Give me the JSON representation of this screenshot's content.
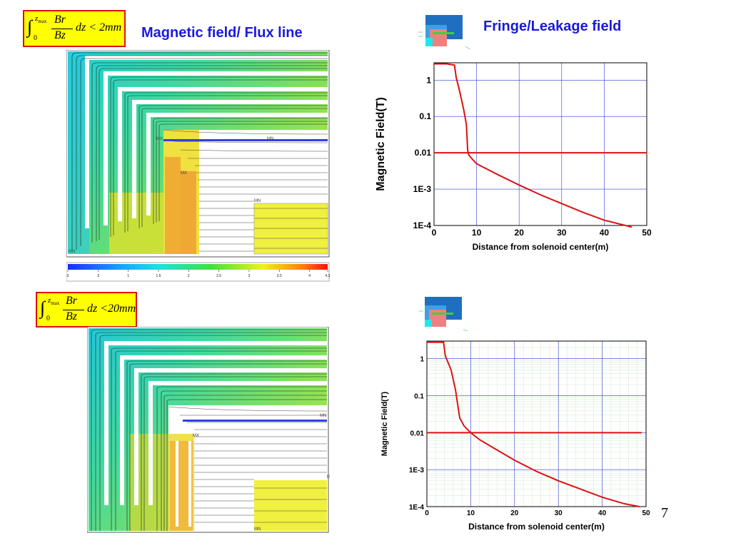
{
  "slide": {
    "title_left": "Magnetic field/ Flux line",
    "title_right": "Fringe/Leakage field",
    "page_number": "7"
  },
  "formulas": [
    {
      "lower": "0",
      "upper": "z",
      "upper_sub": "max",
      "num": "Br",
      "den": "Bz",
      "rhs": "dz < 2mm"
    },
    {
      "lower": "0",
      "upper": "z",
      "upper_sub": "max",
      "num": "Br",
      "den": "Bz",
      "rhs": "dz <20mm"
    }
  ],
  "field_maps": [
    {
      "marker_labels": [
        "MX",
        "MN",
        "MX",
        "MN",
        "MN"
      ],
      "colorbar": {
        "min": 0,
        "max": 4.3,
        "ticks": [
          "0",
          ".5",
          "1",
          "1.5",
          "2",
          "2.5",
          "3",
          "3.5",
          "4",
          "4.3"
        ]
      }
    },
    {
      "marker_labels": [
        "MN",
        "MX",
        "MX",
        "MN"
      ]
    }
  ],
  "chart_data": [
    {
      "type": "line",
      "title": "",
      "xlabel": "Distance from solenoid center(m)",
      "ylabel": "Magnetic Field(T)",
      "xlim": [
        0,
        50
      ],
      "ylim": [
        0.0001,
        3
      ],
      "yscale": "log",
      "xticks": [
        "0",
        "10",
        "20",
        "30",
        "40",
        "50"
      ],
      "yticks": [
        {
          "value": 1,
          "label": "1"
        },
        {
          "value": 0.1,
          "label": "0.1"
        },
        {
          "value": 0.01,
          "label": "0.01"
        },
        {
          "value": 0.001,
          "label": "1E-3"
        },
        {
          "value": 0.0001,
          "label": "1E-4"
        }
      ],
      "grid": "major",
      "series": [
        {
          "color": "#e01010",
          "x": [
            0,
            3,
            4.8,
            5.2,
            6,
            7,
            7.6,
            7.9,
            8.1,
            8.6,
            10,
            15,
            20,
            25,
            30,
            35,
            40,
            45,
            46.5
          ],
          "y": [
            2.8,
            2.8,
            2.6,
            1.2,
            0.5,
            0.15,
            0.06,
            0.012,
            0.009,
            0.0075,
            0.005,
            0.0025,
            0.0013,
            0.0007,
            0.0004,
            0.00023,
            0.00014,
            0.0001,
            9e-05
          ]
        },
        {
          "color": "#e01010",
          "x": [
            0,
            50
          ],
          "y": [
            0.01,
            0.01
          ]
        }
      ]
    },
    {
      "type": "line",
      "title": "",
      "xlabel": "Distance from solenoid center(m)",
      "ylabel": "Magnetic Field(T)",
      "xlim": [
        0,
        50
      ],
      "ylim": [
        0.0001,
        3
      ],
      "yscale": "log",
      "xticks": [
        "0",
        "10",
        "20",
        "30",
        "40",
        "50"
      ],
      "yticks": [
        {
          "value": 1,
          "label": "1"
        },
        {
          "value": 0.1,
          "label": "0.1"
        },
        {
          "value": 0.01,
          "label": "0.01"
        },
        {
          "value": 0.001,
          "label": "1E-3"
        },
        {
          "value": 0.0001,
          "label": "1E-4"
        }
      ],
      "grid": "major+minor",
      "series": [
        {
          "color": "#e01010",
          "x": [
            0,
            3.8,
            4.2,
            5.5,
            6.5,
            7,
            7.5,
            8.5,
            10,
            12,
            15,
            20,
            25,
            30,
            35,
            40,
            45,
            48.5
          ],
          "y": [
            2.8,
            2.8,
            1.2,
            0.5,
            0.15,
            0.06,
            0.025,
            0.015,
            0.01,
            0.0065,
            0.004,
            0.0018,
            0.0009,
            0.0005,
            0.0003,
            0.00018,
            0.00012,
            0.0001
          ]
        },
        {
          "color": "#e01010",
          "x": [
            0,
            49
          ],
          "y": [
            0.01,
            0.01
          ]
        }
      ]
    }
  ]
}
